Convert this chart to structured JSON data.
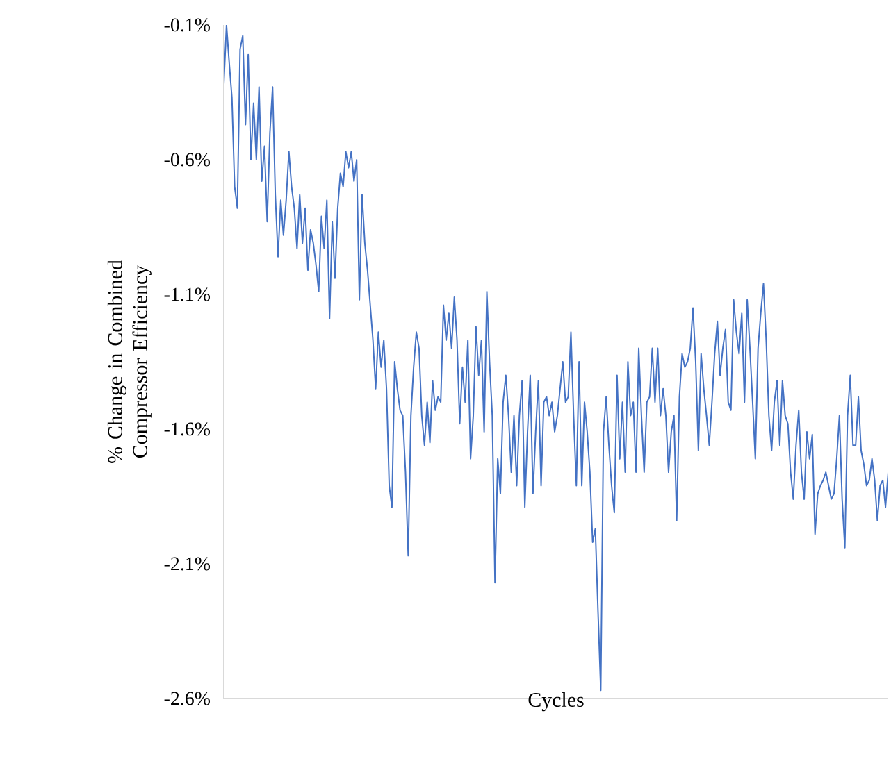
{
  "chart_data": {
    "type": "line",
    "xlabel": "Cycles",
    "ylabel": "% Change in Combined Compressor Efficiency",
    "color": "#4472c4",
    "ylim": [
      -2.6,
      -0.1
    ],
    "yticks": [
      {
        "value": -2.6,
        "label": "-2.6%"
      },
      {
        "value": -2.1,
        "label": "-2.1%"
      },
      {
        "value": -1.6,
        "label": "-1.6%"
      },
      {
        "value": -1.1,
        "label": "-1.1%"
      },
      {
        "value": -0.6,
        "label": "-0.6%"
      },
      {
        "value": -0.1,
        "label": "-0.1%"
      }
    ],
    "tick_labels": "y",
    "grid": false,
    "categories": [
      null,
      null,
      null,
      null,
      null,
      null,
      null,
      null,
      null,
      null,
      null,
      null,
      null,
      null,
      null,
      null,
      null,
      null,
      null,
      null,
      null,
      null,
      null,
      null,
      null,
      null,
      null,
      null,
      null,
      null,
      null,
      null,
      null,
      null,
      null,
      null,
      null,
      null,
      null,
      null,
      null,
      null,
      null,
      null,
      null,
      null,
      null,
      null,
      null,
      null,
      null,
      null,
      null,
      null,
      null,
      null,
      null,
      null,
      null,
      null,
      null,
      null,
      null,
      null,
      null,
      null,
      null,
      null,
      null,
      null,
      null,
      null,
      null,
      null,
      null,
      null,
      null,
      null,
      null,
      null,
      null,
      null,
      null,
      null,
      null,
      null,
      null,
      null,
      null,
      null,
      null,
      null,
      null,
      null,
      null,
      null,
      null,
      null,
      null,
      null,
      null,
      null,
      null,
      null,
      null,
      null,
      null,
      null,
      null,
      null,
      null,
      null,
      null,
      null,
      null,
      null,
      null,
      null,
      null,
      null,
      null,
      null,
      null,
      null,
      null,
      null,
      null,
      null,
      null,
      null,
      null,
      null,
      null,
      null,
      null,
      null,
      null,
      null,
      null,
      null,
      null,
      null,
      null,
      null,
      null,
      null,
      null,
      null,
      null,
      null,
      null,
      null,
      null,
      null,
      null,
      null,
      null,
      null,
      null,
      null,
      null,
      null,
      null,
      null,
      null,
      null,
      null,
      null,
      null,
      null,
      null,
      null,
      null,
      null,
      null,
      null,
      null,
      null,
      null,
      null,
      null,
      null,
      null,
      null,
      null,
      null,
      null,
      null,
      null,
      null,
      null,
      null,
      null,
      null,
      null,
      null,
      null,
      null,
      null,
      null,
      null,
      null,
      null,
      null,
      null,
      null,
      null,
      null,
      null,
      null,
      null,
      null,
      null,
      null,
      null,
      null,
      null,
      null,
      null,
      null,
      null,
      null,
      null,
      null,
      null,
      null,
      null,
      null,
      null,
      null,
      null,
      null,
      null,
      null,
      null,
      null,
      null,
      null,
      null,
      null,
      null,
      null,
      null,
      null,
      null,
      null
    ],
    "values": [
      -0.32,
      -0.1,
      -0.24,
      -0.37,
      -0.7,
      -0.78,
      -0.19,
      -0.14,
      -0.47,
      -0.21,
      -0.6,
      -0.39,
      -0.6,
      -0.33,
      -0.68,
      -0.55,
      -0.83,
      -0.5,
      -0.33,
      -0.73,
      -0.96,
      -0.75,
      -0.88,
      -0.75,
      -0.57,
      -0.7,
      -0.78,
      -0.93,
      -0.73,
      -0.91,
      -0.78,
      -1.01,
      -0.86,
      -0.91,
      -0.99,
      -1.09,
      -0.81,
      -0.93,
      -0.75,
      -1.19,
      -0.83,
      -1.04,
      -0.78,
      -0.65,
      -0.7,
      -0.57,
      -0.63,
      -0.57,
      -0.68,
      -0.6,
      -1.12,
      -0.73,
      -0.91,
      -1.01,
      -1.14,
      -1.27,
      -1.45,
      -1.24,
      -1.37,
      -1.27,
      -1.45,
      -1.81,
      -1.89,
      -1.35,
      -1.45,
      -1.53,
      -1.55,
      -1.76,
      -2.07,
      -1.55,
      -1.37,
      -1.24,
      -1.3,
      -1.55,
      -1.66,
      -1.5,
      -1.65,
      -1.42,
      -1.53,
      -1.48,
      -1.5,
      -1.14,
      -1.27,
      -1.17,
      -1.3,
      -1.11,
      -1.27,
      -1.58,
      -1.37,
      -1.5,
      -1.27,
      -1.71,
      -1.55,
      -1.22,
      -1.4,
      -1.27,
      -1.61,
      -1.09,
      -1.35,
      -1.55,
      -2.17,
      -1.71,
      -1.84,
      -1.5,
      -1.4,
      -1.55,
      -1.76,
      -1.55,
      -1.81,
      -1.55,
      -1.42,
      -1.89,
      -1.61,
      -1.4,
      -1.84,
      -1.61,
      -1.42,
      -1.81,
      -1.5,
      -1.48,
      -1.55,
      -1.5,
      -1.61,
      -1.55,
      -1.45,
      -1.35,
      -1.5,
      -1.48,
      -1.24,
      -1.55,
      -1.81,
      -1.35,
      -1.81,
      -1.5,
      -1.61,
      -1.76,
      -2.02,
      -1.97,
      -2.28,
      -2.57,
      -1.61,
      -1.48,
      -1.66,
      -1.81,
      -1.91,
      -1.4,
      -1.71,
      -1.5,
      -1.76,
      -1.35,
      -1.55,
      -1.5,
      -1.76,
      -1.3,
      -1.55,
      -1.76,
      -1.5,
      -1.48,
      -1.3,
      -1.5,
      -1.3,
      -1.55,
      -1.45,
      -1.55,
      -1.76,
      -1.61,
      -1.55,
      -1.94,
      -1.48,
      -1.32,
      -1.37,
      -1.35,
      -1.3,
      -1.15,
      -1.35,
      -1.68,
      -1.32,
      -1.45,
      -1.55,
      -1.66,
      -1.5,
      -1.32,
      -1.2,
      -1.4,
      -1.3,
      -1.23,
      -1.5,
      -1.53,
      -1.12,
      -1.24,
      -1.32,
      -1.17,
      -1.5,
      -1.12,
      -1.3,
      -1.5,
      -1.71,
      -1.3,
      -1.17,
      -1.06,
      -1.27,
      -1.55,
      -1.68,
      -1.5,
      -1.42,
      -1.66,
      -1.42,
      -1.55,
      -1.58,
      -1.76,
      -1.86,
      -1.66,
      -1.53,
      -1.76,
      -1.86,
      -1.61,
      -1.71,
      -1.62,
      -1.99,
      -1.84,
      -1.81,
      -1.79,
      -1.76,
      -1.81,
      -1.86,
      -1.84,
      -1.71,
      -1.55,
      -1.86,
      -2.04,
      -1.55,
      -1.4,
      -1.66,
      -1.66,
      -1.48,
      -1.68,
      -1.73,
      -1.81,
      -1.79,
      -1.71,
      -1.79,
      -1.94,
      -1.81,
      -1.79,
      -1.89,
      -1.76
    ]
  }
}
